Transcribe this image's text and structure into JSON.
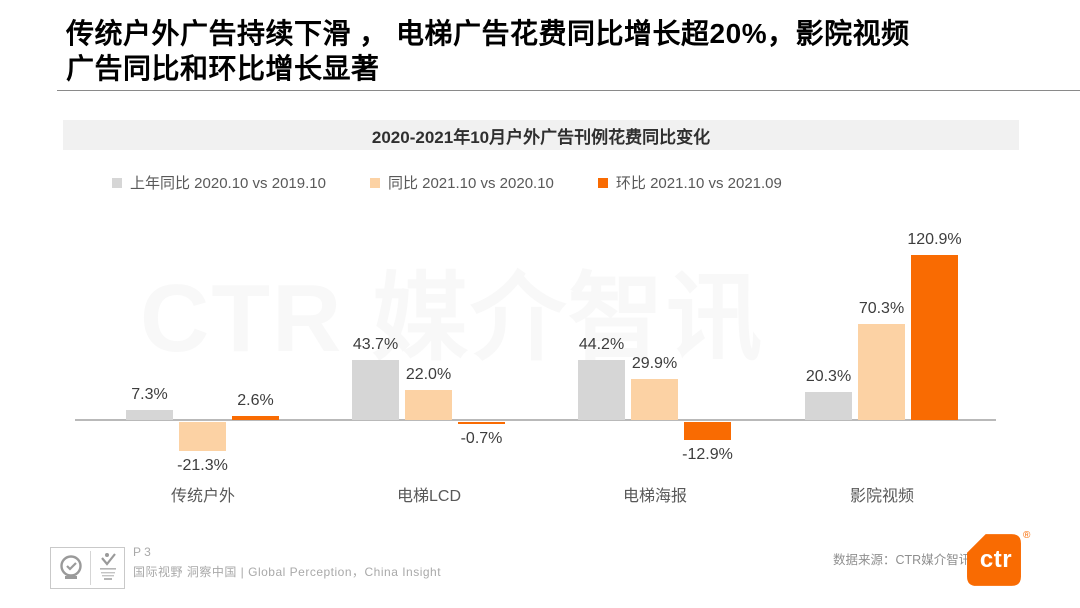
{
  "page": {
    "title_line1": "传统户外广告持续下滑 ， 电梯广告花费同比增长超20%，影院视频",
    "title_line2": "广告同比和环比增长显著",
    "watermark": "CTR 媒介智讯"
  },
  "chart_data": {
    "type": "bar",
    "title": "2020-2021年10月户外广告刊例花费同比变化",
    "categories": [
      "传统户外",
      "电梯LCD",
      "电梯海报",
      "影院视频"
    ],
    "series": [
      {
        "name": "上年同比 2020.10 vs 2019.10",
        "color": "#d6d6d6",
        "values": [
          7.3,
          43.7,
          44.2,
          20.3
        ]
      },
      {
        "name": "同比 2021.10 vs 2020.10",
        "color": "#fcd2a4",
        "values": [
          -21.3,
          22.0,
          29.9,
          70.3
        ]
      },
      {
        "name": "环比 2021.10 vs 2021.09",
        "color": "#f96b02",
        "values": [
          2.6,
          -0.7,
          -12.9,
          120.9
        ]
      }
    ],
    "value_suffix": "%",
    "value_labels": [
      "7.3%",
      "43.7%",
      "44.2%",
      "20.3%",
      "-21.3%",
      "22.0%",
      "29.9%",
      "70.3%",
      "2.6%",
      "-0.7%",
      "-12.9%",
      "120.9%"
    ],
    "ylim": [
      -25,
      130
    ],
    "grid": false,
    "legend_position": "top-left",
    "baseline": 0
  },
  "footer": {
    "page_number": "P 3",
    "tagline": "国际视野  洞察中国 | Global Perception，China Insight",
    "source": "数据来源：CTR媒介智讯",
    "logo_text": "ctr",
    "registered_mark": "®"
  },
  "colors": {
    "accent_orange": "#f96b02",
    "peach": "#fcd2a4",
    "gray_bar": "#d6d6d6",
    "banner_bg": "#f1f1f1"
  }
}
